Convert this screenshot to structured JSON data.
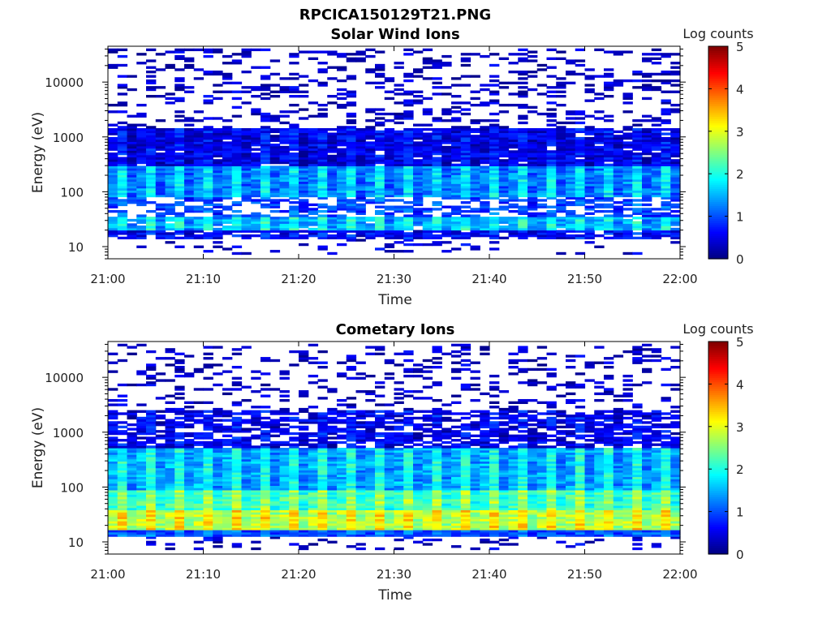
{
  "figure_title": "RPCICA150129T21.PNG",
  "colormap": [
    "#00007f",
    "#0000ff",
    "#0080ff",
    "#00ffff",
    "#80ff80",
    "#ffff00",
    "#ff8000",
    "#ff0000",
    "#7f0000"
  ],
  "chart_data": [
    {
      "type": "heatmap",
      "title": "Solar Wind Ions",
      "xlabel": "Time",
      "ylabel": "Energy (eV)",
      "x_ticks": [
        "21:00",
        "21:10",
        "21:20",
        "21:30",
        "21:40",
        "21:50",
        "22:00"
      ],
      "y_ticks": [
        "10",
        "100",
        "1000",
        "10000"
      ],
      "y_scale": "log",
      "ylim": [
        6,
        45000
      ],
      "colorbar_label": "Log counts",
      "colorbar_ticks": [
        "0",
        "1",
        "2",
        "3",
        "4",
        "5"
      ],
      "clim": [
        0,
        5
      ],
      "band_profile": [
        {
          "e_lo": 7,
          "e_hi": 14,
          "level": 0.3,
          "fill": 0.15
        },
        {
          "e_lo": 14,
          "e_hi": 20,
          "level": 0.6,
          "fill": 0.85
        },
        {
          "e_lo": 20,
          "e_hi": 35,
          "level": 1.5,
          "fill": 0.95
        },
        {
          "e_lo": 35,
          "e_hi": 80,
          "level": 0.9,
          "fill": 0.55
        },
        {
          "e_lo": 80,
          "e_hi": 300,
          "level": 1.3,
          "fill": 1.0
        },
        {
          "e_lo": 300,
          "e_hi": 1500,
          "level": 0.5,
          "fill": 0.95
        },
        {
          "e_lo": 1500,
          "e_hi": 40000,
          "level": 0.2,
          "fill": 0.3
        }
      ]
    },
    {
      "type": "heatmap",
      "title": "Cometary Ions",
      "xlabel": "Time",
      "ylabel": "Energy (eV)",
      "x_ticks": [
        "21:00",
        "21:10",
        "21:20",
        "21:30",
        "21:40",
        "21:50",
        "22:00"
      ],
      "y_ticks": [
        "10",
        "100",
        "1000",
        "10000"
      ],
      "y_scale": "log",
      "ylim": [
        6,
        45000
      ],
      "colorbar_label": "Log counts",
      "colorbar_ticks": [
        "0",
        "1",
        "2",
        "3",
        "4",
        "5"
      ],
      "clim": [
        0,
        5
      ],
      "band_profile": [
        {
          "e_lo": 7,
          "e_hi": 13,
          "level": 0.3,
          "fill": 0.2
        },
        {
          "e_lo": 13,
          "e_hi": 17,
          "level": 1.0,
          "fill": 1.0
        },
        {
          "e_lo": 17,
          "e_hi": 38,
          "level": 2.8,
          "fill": 1.0
        },
        {
          "e_lo": 38,
          "e_hi": 90,
          "level": 2.2,
          "fill": 1.0
        },
        {
          "e_lo": 90,
          "e_hi": 500,
          "level": 1.5,
          "fill": 1.0
        },
        {
          "e_lo": 500,
          "e_hi": 2500,
          "level": 0.5,
          "fill": 0.7
        },
        {
          "e_lo": 2500,
          "e_hi": 40000,
          "level": 0.2,
          "fill": 0.25
        }
      ]
    }
  ]
}
